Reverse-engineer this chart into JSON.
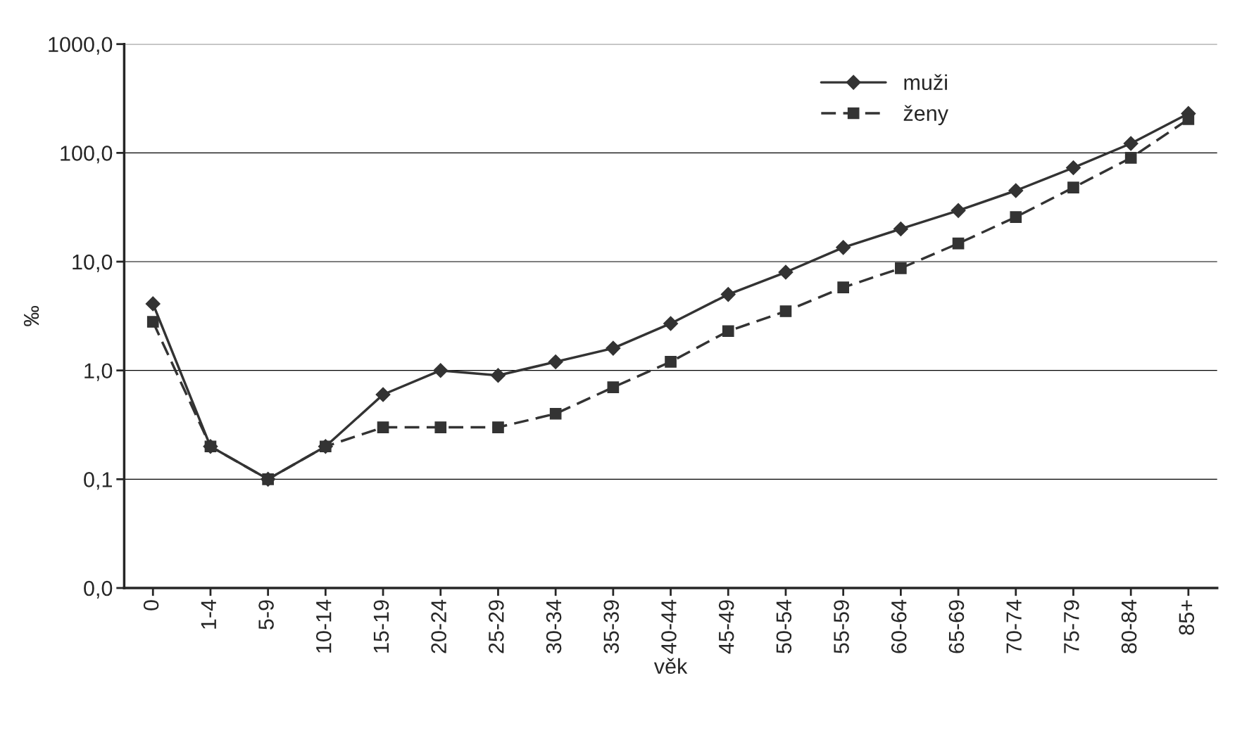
{
  "chart_data": {
    "type": "line",
    "xlabel": "věk",
    "ylabel": "‰",
    "categories": [
      "0",
      "1-4",
      "5-9",
      "10-14",
      "15-19",
      "20-24",
      "25-29",
      "30-34",
      "35-39",
      "40-44",
      "45-49",
      "50-54",
      "55-59",
      "60-64",
      "65-69",
      "70-74",
      "75-79",
      "80-84",
      "85+"
    ],
    "series": [
      {
        "name": "muži",
        "color": "#333333",
        "marker": "diamond",
        "line_style": "solid",
        "values": [
          4.1,
          0.2,
          0.1,
          0.2,
          0.6,
          1.0,
          0.9,
          1.2,
          1.6,
          2.7,
          5.0,
          8.0,
          13.5,
          20,
          29.5,
          45,
          73,
          122,
          230
        ]
      },
      {
        "name": "ženy",
        "color": "#333333",
        "marker": "square",
        "line_style": "dashed",
        "values": [
          2.8,
          0.2,
          0.1,
          0.2,
          0.3,
          0.3,
          0.3,
          0.4,
          0.7,
          1.2,
          2.3,
          3.5,
          5.8,
          8.7,
          14.7,
          25.7,
          48,
          90,
          204
        ]
      }
    ],
    "log": "y",
    "ylim": [
      0.01,
      1000
    ],
    "yticks": [
      {
        "value": 0.01,
        "label": "0,0"
      },
      {
        "value": 0.1,
        "label": "0,1"
      },
      {
        "value": 1,
        "label": "1,0"
      },
      {
        "value": 10,
        "label": "10,0"
      },
      {
        "value": 100,
        "label": "100,0"
      },
      {
        "value": 1000,
        "label": "1000,0"
      }
    ],
    "grid": "y",
    "legend": "top right"
  }
}
